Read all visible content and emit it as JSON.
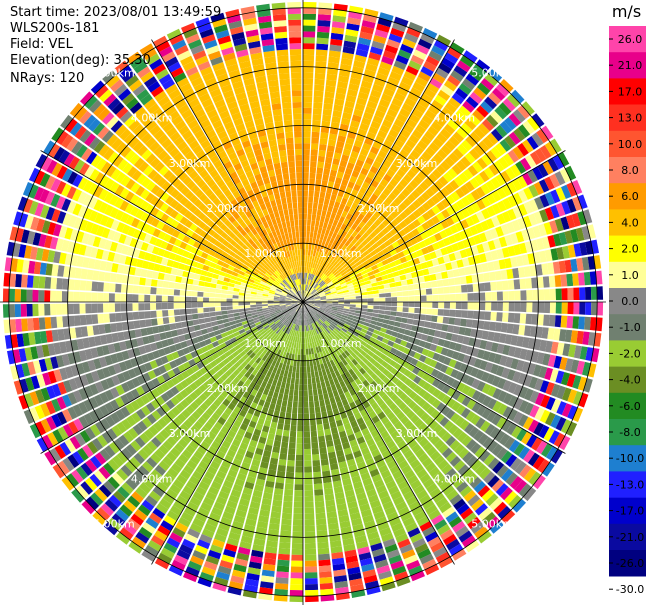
{
  "header": {
    "start_time": "Start time: 2023/08/01 13:49:59",
    "instrument": "WLS200s-181",
    "field": "Field: VEL",
    "elevation": "Elevation(deg): 35.30",
    "nrays": "NRays: 120"
  },
  "colorbar": {
    "unit": "m/s",
    "ticks": [
      "26.0",
      "21.0",
      "17.0",
      "13.0",
      "10.0",
      "8.0",
      "6.0",
      "4.0",
      "2.0",
      "1.0",
      "0.0",
      "-1.0",
      "-2.0",
      "-4.0",
      "-6.0",
      "-8.0",
      "-10.0",
      "-13.0",
      "-17.0",
      "-21.0",
      "-26.0",
      "-30.0"
    ],
    "colors": [
      "#ff44aa",
      "#e8008a",
      "#ff0000",
      "#ff3020",
      "#ff5530",
      "#ff8060",
      "#ff9b00",
      "#ffc000",
      "#ffff00",
      "#ffff99",
      "#888888",
      "#708070",
      "#99cc33",
      "#6b8e23",
      "#228b22",
      "#2a9a4a",
      "#1e7fd0",
      "#2020ff",
      "#0000cc",
      "#0a0aa0",
      "#000080"
    ]
  },
  "chart_data": {
    "type": "heatmap",
    "projection": "polar-ppi",
    "field": "VEL",
    "units": "m/s",
    "nrays": 120,
    "elevation_deg": 35.3,
    "range_rings_km": [
      1.0,
      2.0,
      3.0,
      4.0,
      5.0
    ],
    "ring_labels": [
      "1.00km",
      "2.00km",
      "3.00km",
      "4.00km",
      "5.00km"
    ],
    "max_range_km": 5.15,
    "spokes_deg": [
      0,
      30,
      60,
      90,
      120,
      150,
      180,
      210,
      240,
      270,
      300,
      330
    ],
    "color_levels": [
      -30,
      -26,
      -21,
      -17,
      -13,
      -10,
      -8,
      -6,
      -4,
      -2,
      -1,
      0,
      1,
      2,
      4,
      6,
      8,
      10,
      13,
      17,
      21,
      26
    ],
    "velocity_field_summary": {
      "north_sector_km_0.3_3.5": "2 to 8 m/s (yellow-orange-red core)",
      "south_sector_km_0.3_3.5": "-1 to -8 m/s (green-blue core)",
      "beyond_4.2km": "noise (random colors)"
    }
  }
}
